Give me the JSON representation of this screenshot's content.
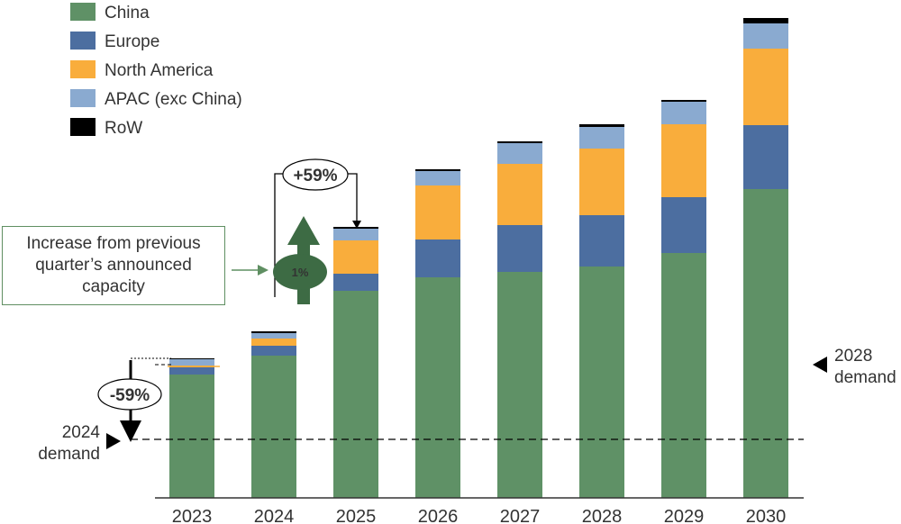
{
  "colors": {
    "China": "#5f9166",
    "Europe": "#4c6ea0",
    "North America": "#f9ad3c",
    "APAC (exc China)": "#8aaad0",
    "RoW": "#000000",
    "callout_green": "#3d6b44"
  },
  "chart_data": {
    "type": "bar",
    "stacked": true,
    "categories": [
      "2023",
      "2024",
      "2025",
      "2026",
      "2027",
      "2028",
      "2029",
      "2030"
    ],
    "series": [
      {
        "name": "China",
        "values": [
          137,
          158,
          230,
          245,
          251,
          257,
          272,
          343
        ]
      },
      {
        "name": "Europe",
        "values": [
          8,
          11,
          19,
          42,
          52,
          57,
          62,
          71
        ]
      },
      {
        "name": "North America",
        "values": [
          2,
          8,
          37,
          60,
          68,
          74,
          81,
          85
        ]
      },
      {
        "name": "APAC (exc China)",
        "values": [
          7,
          6,
          13,
          16,
          23,
          24,
          25,
          28
        ]
      },
      {
        "name": "RoW",
        "values": [
          1,
          2,
          2,
          2,
          2,
          3,
          2,
          6
        ]
      }
    ],
    "ylim": [
      0,
      540
    ],
    "demand_lines": [
      {
        "label_line1": "2024",
        "label_line2": "demand",
        "value": 65
      },
      {
        "label_line1": "2028",
        "label_line2": "demand",
        "value": 153
      }
    ],
    "legend": [
      "China",
      "Europe",
      "North America",
      "APAC (exc China)",
      "RoW"
    ],
    "legend_position": "top-left",
    "annotations": {
      "increase_pct": "+59%",
      "decrease_pct": "-59%",
      "circle_pct": "1%",
      "callout_text": "Increase from previous quarter’s announced capacity"
    },
    "xlabel": "",
    "ylabel": "",
    "title": ""
  }
}
